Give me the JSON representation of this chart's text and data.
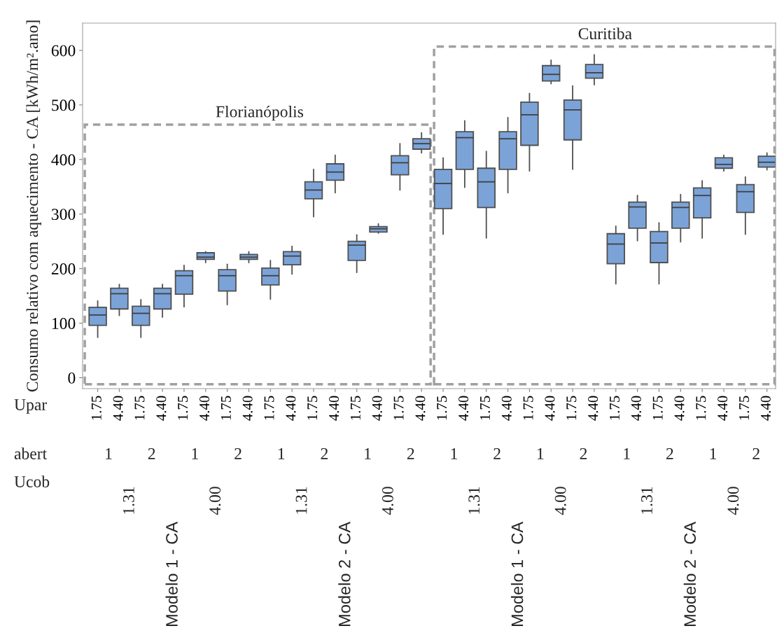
{
  "chart_data": {
    "type": "box",
    "ylabel": "Consumo relativo com aquecimento - CA [kWh/m².ano]",
    "categories": [
      "1.75",
      "4.40",
      "1.75",
      "4.40",
      "1.75",
      "4.40",
      "1.75",
      "4.40",
      "1.75",
      "4.40",
      "1.75",
      "4.40",
      "1.75",
      "4.40",
      "1.75",
      "4.40",
      "1.75",
      "4.40",
      "1.75",
      "4.40",
      "1.75",
      "4.40",
      "1.75",
      "4.40",
      "1.75",
      "4.40",
      "1.75",
      "4.40",
      "1.75",
      "4.40",
      "1.75",
      "4.40"
    ],
    "ylim": [
      -20,
      650
    ],
    "yticks": [
      0,
      100,
      200,
      300,
      400,
      500,
      600
    ],
    "series": [
      {
        "color": "#7ba3d8",
        "boxes": [
          {
            "low": 74,
            "q1": 96,
            "median": 115,
            "q3": 129,
            "high": 141
          },
          {
            "low": 114,
            "q1": 126,
            "median": 154,
            "q3": 164,
            "high": 171
          },
          {
            "low": 74,
            "q1": 96,
            "median": 118,
            "q3": 131,
            "high": 143
          },
          {
            "low": 111,
            "q1": 126,
            "median": 154,
            "q3": 164,
            "high": 171
          },
          {
            "low": 130,
            "q1": 153,
            "median": 187,
            "q3": 196,
            "high": 206
          },
          {
            "low": 211,
            "q1": 217,
            "median": 221,
            "q3": 229,
            "high": 231
          },
          {
            "low": 134,
            "q1": 159,
            "median": 187,
            "q3": 198,
            "high": 208
          },
          {
            "low": 211,
            "q1": 217,
            "median": 221,
            "q3": 226,
            "high": 231
          },
          {
            "low": 144,
            "q1": 170,
            "median": 187,
            "q3": 201,
            "high": 215
          },
          {
            "low": 190,
            "q1": 207,
            "median": 223,
            "q3": 231,
            "high": 241
          },
          {
            "low": 295,
            "q1": 328,
            "median": 344,
            "q3": 359,
            "high": 382
          },
          {
            "low": 339,
            "q1": 362,
            "median": 377,
            "q3": 392,
            "high": 408
          },
          {
            "low": 193,
            "q1": 215,
            "median": 243,
            "q3": 250,
            "high": 262
          },
          {
            "low": 265,
            "q1": 267,
            "median": 273,
            "q3": 277,
            "high": 282
          },
          {
            "low": 344,
            "q1": 372,
            "median": 394,
            "q3": 407,
            "high": 429
          },
          {
            "low": 412,
            "q1": 419,
            "median": 429,
            "q3": 438,
            "high": 449
          },
          {
            "low": 263,
            "q1": 310,
            "median": 356,
            "q3": 382,
            "high": 403
          },
          {
            "low": 349,
            "q1": 382,
            "median": 440,
            "q3": 451,
            "high": 471
          },
          {
            "low": 256,
            "q1": 312,
            "median": 359,
            "q3": 384,
            "high": 415
          },
          {
            "low": 339,
            "q1": 382,
            "median": 438,
            "q3": 451,
            "high": 477
          },
          {
            "low": 379,
            "q1": 426,
            "median": 482,
            "q3": 505,
            "high": 521
          },
          {
            "low": 539,
            "q1": 544,
            "median": 556,
            "q3": 572,
            "high": 582
          },
          {
            "low": 382,
            "q1": 436,
            "median": 491,
            "q3": 509,
            "high": 535
          },
          {
            "low": 537,
            "q1": 549,
            "median": 559,
            "q3": 574,
            "high": 592
          },
          {
            "low": 172,
            "q1": 209,
            "median": 245,
            "q3": 264,
            "high": 278
          },
          {
            "low": 251,
            "q1": 274,
            "median": 313,
            "q3": 322,
            "high": 334
          },
          {
            "low": 172,
            "q1": 211,
            "median": 247,
            "q3": 268,
            "high": 284
          },
          {
            "low": 249,
            "q1": 274,
            "median": 312,
            "q3": 322,
            "high": 336
          },
          {
            "low": 256,
            "q1": 293,
            "median": 334,
            "q3": 348,
            "high": 361
          },
          {
            "low": 379,
            "q1": 384,
            "median": 391,
            "q3": 403,
            "high": 408
          },
          {
            "low": 263,
            "q1": 303,
            "median": 341,
            "q3": 354,
            "high": 368
          },
          {
            "low": 381,
            "q1": 386,
            "median": 395,
            "q3": 406,
            "high": 412
          }
        ]
      }
    ],
    "annotations": [
      "Florianópolis",
      "Curitiba",
      "Upar",
      "abert",
      "Ucob",
      "1",
      "2",
      "1",
      "2",
      "1",
      "2",
      "1",
      "2",
      "1",
      "2",
      "1",
      "2",
      "1",
      "2",
      "1",
      "2",
      "1.31",
      "4.00",
      "1.31",
      "4.00",
      "1.31",
      "4.00",
      "1.31",
      "4.00",
      "Modelo 1 - CA",
      "Modelo 2 - CA",
      "Modelo 1 - CA",
      "Modelo 2 - CA"
    ]
  }
}
